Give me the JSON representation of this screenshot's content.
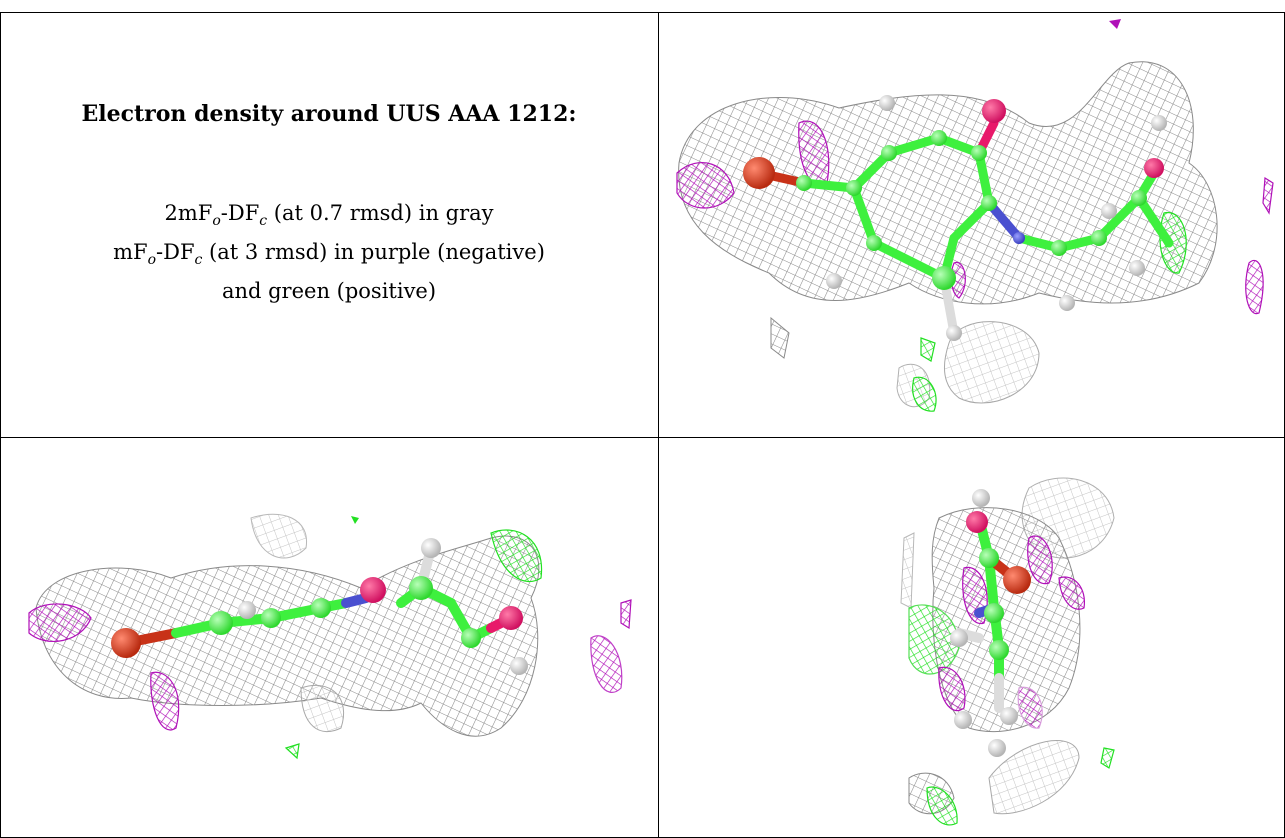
{
  "caption": {
    "title": "Electron density around UUS AAA 1212:",
    "line1_prefix": "2mF",
    "line1_sub_o": "o",
    "line1_mid": "-DF",
    "line1_sub_c": "c",
    "line1_suffix": " (at 0.7 rmsd) in gray",
    "line2_prefix": "mF",
    "line2_sub_o": "o",
    "line2_mid": "-DF",
    "line2_sub_c": "c",
    "line2_suffix": " (at 3 rmsd) in purple (negative)",
    "line3": "and green (positive)"
  },
  "colors": {
    "gray_mesh": "#8a8a8a",
    "purple_mesh": "#b010b8",
    "green_mesh": "#22e022",
    "carbon": "#3ef03e",
    "oxygen_red": "#c83218",
    "oxygen_pink": "#e8196a",
    "nitrogen": "#4a50d0",
    "hydrogen": "#dcdcdc"
  },
  "panels": [
    {
      "name": "view-top-right"
    },
    {
      "name": "view-bottom-left"
    },
    {
      "name": "view-bottom-right"
    }
  ]
}
